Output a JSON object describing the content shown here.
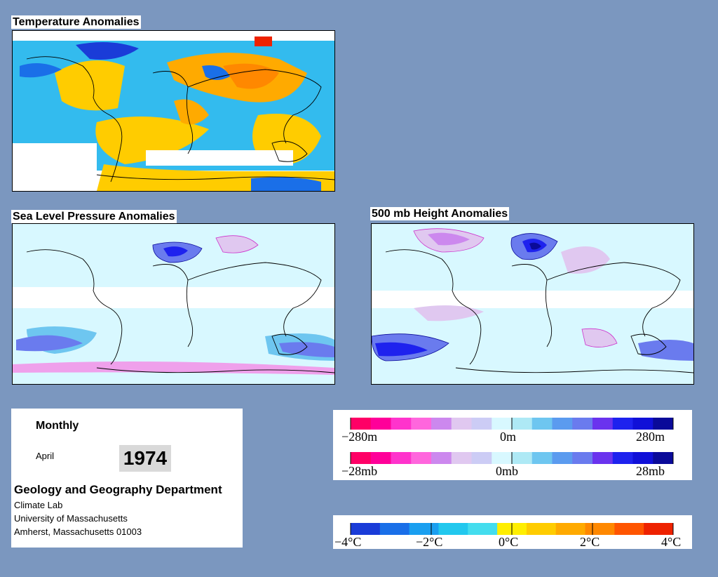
{
  "panels": {
    "temperature": {
      "title": "Temperature Anomalies"
    },
    "pressure": {
      "title": "Sea Level Pressure Anomalies"
    },
    "height": {
      "title": "500 mb Height Anomalies"
    }
  },
  "info": {
    "frequency": "Monthly",
    "month": "April",
    "year": "1974",
    "department": "Geology and Geography Department",
    "lines": [
      "Climate Lab",
      "University of Massachusetts",
      "Amherst, Massachusetts 01003"
    ]
  },
  "legends": {
    "height_scale": {
      "labels": [
        "−280m",
        "0m",
        "280m"
      ]
    },
    "pressure_scale": {
      "labels": [
        "−28mb",
        "0mb",
        "28mb"
      ]
    },
    "temperature_scale": {
      "labels": [
        "−4°C",
        "−2°C",
        "0°C",
        "2°C",
        "4°C"
      ]
    }
  },
  "colors": {
    "background": "#7b97bf",
    "anomaly_diverging": [
      "#ff0066",
      "#ff0099",
      "#ff33cc",
      "#ff66dd",
      "#cc88ee",
      "#e0c8f0",
      "#ccccf5",
      "#d8f8ff",
      "#aee9f5",
      "#6ec6f0",
      "#5b9bef",
      "#6a7bee",
      "#6a33ee",
      "#1e22ee",
      "#1010d8",
      "#0a0a99"
    ],
    "temperature": [
      "#1a3cd8",
      "#1a6fe8",
      "#1a9ff0",
      "#22c8ee",
      "#44ddee",
      "#ffee00",
      "#ffcc00",
      "#ffaa00",
      "#ff8800",
      "#ff5500",
      "#ee2200"
    ]
  }
}
